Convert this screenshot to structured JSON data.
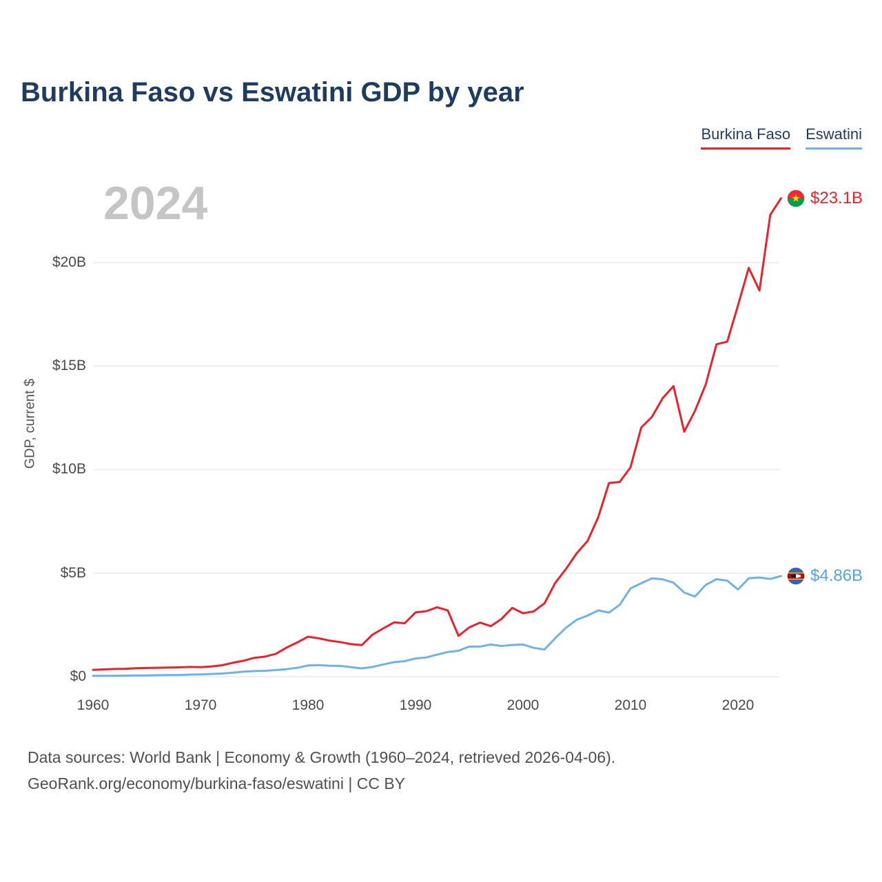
{
  "page": {
    "title": "Burkina Faso vs Eswatini GDP by year",
    "watermark_year": "2024",
    "footer_line1": "Data sources: World Bank | Economy & Growth (1960–2024, retrieved 2026-04-06).",
    "footer_line2": "GeoRank.org/economy/burkina-faso/eswatini | CC BY"
  },
  "legend": {
    "items": [
      {
        "label": "Burkina Faso",
        "color": "#e8222a"
      },
      {
        "label": "Eswatini",
        "color": "#6fb2e4"
      }
    ]
  },
  "chart_data": {
    "type": "line",
    "title": "Burkina Faso vs Eswatini GDP by year",
    "xlabel": "",
    "ylabel": "GDP, current $",
    "unit": "billions of current US dollars",
    "ylim": [
      0,
      23.5
    ],
    "yticks": [
      "$0",
      "$5B",
      "$10B",
      "$15B",
      "$20B"
    ],
    "ytick_values": [
      0,
      5,
      10,
      15,
      20
    ],
    "xticks": [
      "1960",
      "1970",
      "1980",
      "1990",
      "2000",
      "2010",
      "2020"
    ],
    "xtick_values": [
      1960,
      1970,
      1980,
      1990,
      2000,
      2010,
      2020
    ],
    "grid": true,
    "legend_position": "top-right",
    "x": [
      1960,
      1961,
      1962,
      1963,
      1964,
      1965,
      1966,
      1967,
      1968,
      1969,
      1970,
      1971,
      1972,
      1973,
      1974,
      1975,
      1976,
      1977,
      1978,
      1979,
      1980,
      1981,
      1982,
      1983,
      1984,
      1985,
      1986,
      1987,
      1988,
      1989,
      1990,
      1991,
      1992,
      1993,
      1994,
      1995,
      1996,
      1997,
      1998,
      1999,
      2000,
      2001,
      2002,
      2003,
      2004,
      2005,
      2006,
      2007,
      2008,
      2009,
      2010,
      2011,
      2012,
      2013,
      2014,
      2015,
      2016,
      2017,
      2018,
      2019,
      2020,
      2021,
      2022,
      2023,
      2024
    ],
    "series": [
      {
        "name": "Burkina Faso",
        "color": "#e8222a",
        "end_label": "$23.1B",
        "end_value_billions": 23.1,
        "values": [
          0.33,
          0.35,
          0.37,
          0.38,
          0.41,
          0.42,
          0.43,
          0.44,
          0.45,
          0.47,
          0.46,
          0.49,
          0.55,
          0.67,
          0.77,
          0.91,
          0.97,
          1.1,
          1.4,
          1.65,
          1.93,
          1.85,
          1.74,
          1.67,
          1.57,
          1.52,
          2.03,
          2.33,
          2.62,
          2.58,
          3.1,
          3.16,
          3.35,
          3.2,
          1.97,
          2.38,
          2.61,
          2.44,
          2.79,
          3.32,
          3.06,
          3.15,
          3.54,
          4.53,
          5.2,
          5.96,
          6.55,
          7.7,
          9.35,
          9.4,
          10.11,
          12.03,
          12.55,
          13.45,
          14.03,
          11.83,
          12.84,
          14.11,
          16.05,
          16.18,
          17.93,
          19.74,
          18.65,
          22.3,
          23.1
        ]
      },
      {
        "name": "Eswatini",
        "color": "#6fb2e4",
        "end_label": "$4.86B",
        "end_value_billions": 4.86,
        "values": [
          0.04,
          0.04,
          0.04,
          0.05,
          0.06,
          0.06,
          0.07,
          0.08,
          0.08,
          0.1,
          0.11,
          0.13,
          0.15,
          0.19,
          0.24,
          0.27,
          0.28,
          0.32,
          0.36,
          0.43,
          0.54,
          0.56,
          0.53,
          0.52,
          0.46,
          0.4,
          0.47,
          0.59,
          0.7,
          0.75,
          0.88,
          0.93,
          1.06,
          1.19,
          1.25,
          1.45,
          1.45,
          1.55,
          1.48,
          1.53,
          1.55,
          1.39,
          1.31,
          1.86,
          2.36,
          2.75,
          2.95,
          3.2,
          3.09,
          3.47,
          4.26,
          4.51,
          4.75,
          4.7,
          4.54,
          4.06,
          3.87,
          4.43,
          4.71,
          4.64,
          4.21,
          4.75,
          4.79,
          4.72,
          4.86
        ]
      }
    ]
  }
}
